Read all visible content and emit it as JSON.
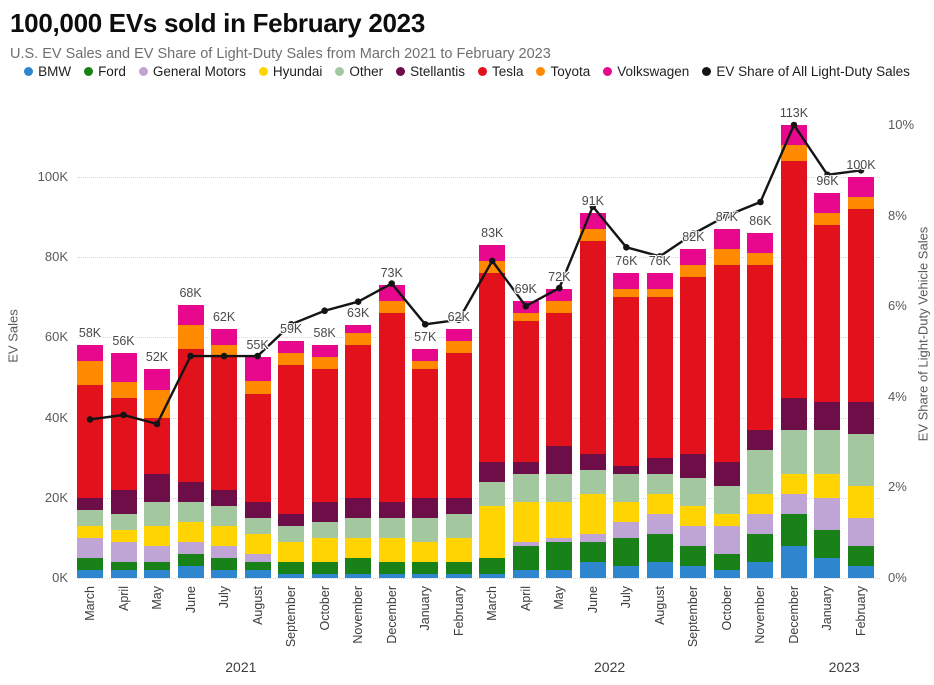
{
  "title": "100,000 EVs sold in February 2023",
  "subtitle": "U.S. EV Sales and EV Share of Light-Duty Sales from March 2021 to February 2023",
  "chart_data": {
    "type": "stacked-bar+line",
    "grid_color": "#d8d8d8",
    "categories": [
      "March",
      "April",
      "May",
      "June",
      "July",
      "August",
      "September",
      "October",
      "November",
      "December",
      "January",
      "February",
      "March",
      "April",
      "May",
      "June",
      "July",
      "August",
      "September",
      "October",
      "November",
      "December",
      "January",
      "February"
    ],
    "year_groups": [
      {
        "label": "2021",
        "start": 0,
        "end": 9
      },
      {
        "label": "2022",
        "start": 10,
        "end": 21
      },
      {
        "label": "2023",
        "start": 22,
        "end": 23
      }
    ],
    "bar_total_labels": [
      "58K",
      "56K",
      "52K",
      "68K",
      "62K",
      "55K",
      "59K",
      "58K",
      "63K",
      "73K",
      "57K",
      "62K",
      "83K",
      "69K",
      "72K",
      "91K",
      "76K",
      "76K",
      "82K",
      "87K",
      "86K",
      "113K",
      "96K",
      "100K"
    ],
    "bar_totals_k": [
      58,
      56,
      52,
      68,
      62,
      55,
      59,
      58,
      63,
      73,
      57,
      62,
      83,
      69,
      72,
      91,
      76,
      76,
      82,
      87,
      86,
      113,
      96,
      100
    ],
    "series": [
      {
        "name": "BMW",
        "color": "#2e86ce",
        "values": [
          2,
          2,
          2,
          3,
          2,
          2,
          1,
          1,
          1,
          1,
          1,
          1,
          1,
          2,
          2,
          4,
          3,
          4,
          3,
          2,
          4,
          8,
          5,
          3
        ]
      },
      {
        "name": "Ford",
        "color": "#188218",
        "values": [
          3,
          2,
          2,
          3,
          3,
          2,
          3,
          3,
          4,
          3,
          3,
          3,
          4,
          6,
          7,
          5,
          7,
          7,
          5,
          4,
          7,
          8,
          7,
          5
        ]
      },
      {
        "name": "General Motors",
        "color": "#bea5d6",
        "values": [
          5,
          5,
          4,
          3,
          3,
          2,
          0,
          0,
          0,
          0,
          0,
          0,
          0,
          1,
          1,
          2,
          4,
          5,
          5,
          7,
          5,
          5,
          8,
          7
        ]
      },
      {
        "name": "Hyundai",
        "color": "#ffd402",
        "values": [
          3,
          3,
          5,
          5,
          5,
          5,
          5,
          6,
          5,
          6,
          5,
          6,
          13,
          10,
          9,
          10,
          5,
          5,
          5,
          3,
          5,
          5,
          6,
          8
        ]
      },
      {
        "name": "Other",
        "color": "#a3c79f",
        "values": [
          4,
          4,
          6,
          5,
          5,
          4,
          4,
          4,
          5,
          5,
          6,
          6,
          6,
          7,
          7,
          6,
          7,
          5,
          7,
          7,
          11,
          11,
          11,
          13
        ]
      },
      {
        "name": "Stellantis",
        "color": "#6d0e49",
        "values": [
          3,
          6,
          7,
          5,
          4,
          4,
          3,
          5,
          5,
          4,
          5,
          4,
          5,
          3,
          7,
          4,
          2,
          4,
          6,
          6,
          5,
          8,
          7,
          8
        ]
      },
      {
        "name": "Tesla",
        "color": "#e2121d",
        "values": [
          28,
          23,
          14,
          33,
          33,
          27,
          37,
          33,
          38,
          47,
          32,
          36,
          47,
          35,
          33,
          53,
          42,
          40,
          44,
          49,
          41,
          59,
          44,
          48
        ]
      },
      {
        "name": "Toyota",
        "color": "#ff8a00",
        "values": [
          6,
          4,
          7,
          6,
          3,
          3,
          3,
          3,
          3,
          3,
          2,
          3,
          3,
          2,
          3,
          3,
          2,
          2,
          3,
          4,
          3,
          4,
          3,
          3
        ]
      },
      {
        "name": "Volkswagen",
        "color": "#e7088e",
        "values": [
          4,
          7,
          5,
          5,
          4,
          6,
          3,
          3,
          2,
          4,
          3,
          3,
          4,
          3,
          3,
          4,
          4,
          4,
          4,
          5,
          5,
          5,
          5,
          5
        ]
      }
    ],
    "line_series": {
      "name": "EV Share of All Light-Duty Sales",
      "color": "#141414",
      "values": [
        3.5,
        3.6,
        3.4,
        4.9,
        4.9,
        4.9,
        5.6,
        5.9,
        6.1,
        6.5,
        5.6,
        5.7,
        7.0,
        6.0,
        6.4,
        8.2,
        7.3,
        7.1,
        7.6,
        8.0,
        8.3,
        10.0,
        8.9,
        9.0
      ]
    },
    "left_axis": {
      "label": "EV Sales",
      "ticks": [
        "0K",
        "20K",
        "40K",
        "60K",
        "80K",
        "100K"
      ],
      "max": 100
    },
    "right_axis": {
      "label": "EV Share of Light-Duty Vehicle Sales",
      "ticks": [
        "0%",
        "2%",
        "4%",
        "6%",
        "8%",
        "10%"
      ],
      "max": 10
    }
  }
}
